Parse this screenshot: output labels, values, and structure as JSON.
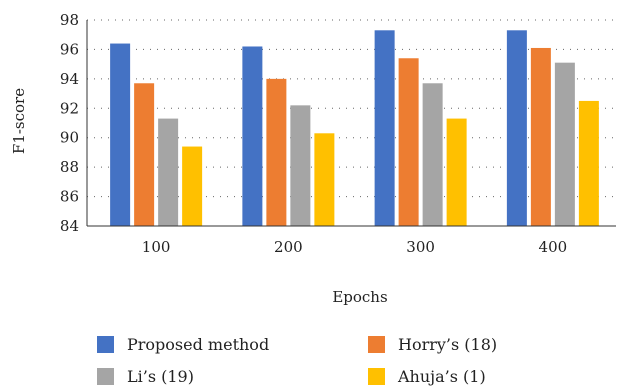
{
  "chart_data": {
    "type": "bar",
    "categories": [
      "100",
      "200",
      "300",
      "400"
    ],
    "series": [
      {
        "name": "Proposed method",
        "values": [
          96.4,
          96.2,
          97.3,
          97.3
        ],
        "color": "#4472C4"
      },
      {
        "name": "Horry’s (18)",
        "values": [
          93.7,
          94.0,
          95.4,
          96.1
        ],
        "color": "#ED7D31"
      },
      {
        "name": "Li’s (19)",
        "values": [
          91.3,
          92.2,
          93.7,
          95.1
        ],
        "color": "#A5A5A5"
      },
      {
        "name": "Ahuja’s (1)",
        "values": [
          89.4,
          90.3,
          91.3,
          92.5
        ],
        "color": "#FFC000"
      }
    ],
    "xlabel": "Epochs",
    "ylabel": "F1-score",
    "ylim": [
      84,
      98
    ],
    "yticks": [
      "84",
      "86",
      "88",
      "90",
      "92",
      "94",
      "96",
      "98"
    ],
    "grid": "horizontal-dotted",
    "legend_position": "bottom"
  }
}
